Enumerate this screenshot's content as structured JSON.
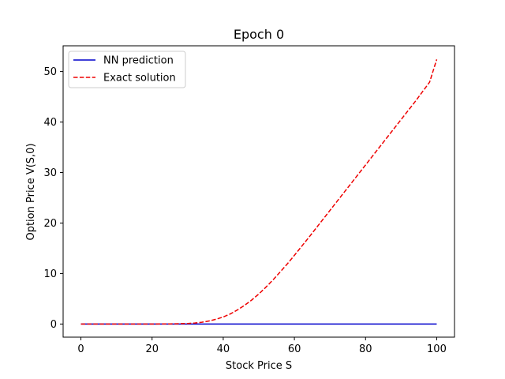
{
  "chart_data": {
    "type": "line",
    "title": "Epoch 0",
    "xlabel": "Stock Price S",
    "ylabel": "Option Price V(S,0)",
    "xlim": [
      -5,
      105
    ],
    "ylim": [
      -2.6,
      55.1
    ],
    "xticks": [
      0,
      20,
      40,
      60,
      80,
      100
    ],
    "yticks": [
      0,
      10,
      20,
      30,
      40,
      50
    ],
    "grid": false,
    "legend_position": "top-left",
    "series": [
      {
        "name": "NN prediction",
        "color": "#0000cc",
        "style": "solid",
        "x": [
          0,
          100
        ],
        "y": [
          0,
          0
        ]
      },
      {
        "name": "Exact solution",
        "color": "#ee0000",
        "style": "dashed",
        "x": [
          0,
          10,
          20,
          25,
          30,
          32,
          34,
          36,
          38,
          40,
          42,
          44,
          46,
          48,
          50,
          52,
          54,
          56,
          58,
          60,
          62,
          64,
          66,
          68,
          70,
          72,
          74,
          76,
          78,
          80,
          82,
          84,
          86,
          88,
          90,
          92,
          94,
          96,
          98,
          100
        ],
        "y": [
          0,
          0,
          0,
          0.02,
          0.1,
          0.2,
          0.35,
          0.6,
          0.95,
          1.4,
          2.0,
          2.8,
          3.7,
          4.75,
          5.95,
          7.3,
          8.75,
          10.3,
          11.9,
          13.6,
          15.35,
          17.1,
          18.9,
          20.7,
          22.5,
          24.3,
          26.1,
          27.9,
          29.7,
          31.5,
          33.3,
          35.1,
          36.9,
          38.7,
          40.5,
          42.3,
          44.1,
          46.0,
          47.9,
          52.4
        ]
      }
    ]
  }
}
